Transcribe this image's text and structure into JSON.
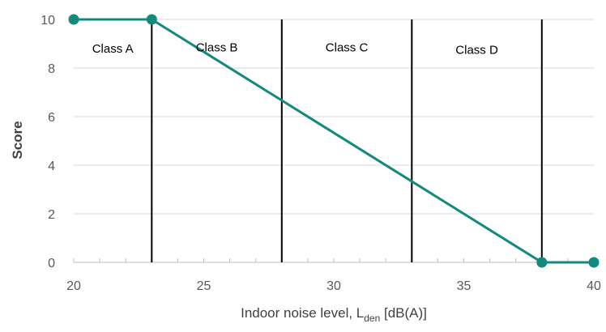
{
  "chart_data": {
    "type": "line",
    "title": "",
    "xlabel_main": "Indoor noise level, L",
    "xlabel_sub": "den",
    "xlabel_unit": " [dB(A)]",
    "ylabel": "Score",
    "xlim": [
      20,
      40
    ],
    "ylim": [
      0,
      10
    ],
    "xticks": [
      20,
      25,
      30,
      35,
      40
    ],
    "yticks": [
      0,
      2,
      4,
      6,
      8,
      10
    ],
    "grid": "horizontal",
    "legend": "none",
    "series": [
      {
        "color": "#138a7e",
        "points": [
          [
            20,
            10
          ],
          [
            23,
            10
          ],
          [
            38,
            0
          ],
          [
            40,
            0
          ]
        ]
      }
    ],
    "class_boundaries": [
      23,
      28,
      33,
      38
    ],
    "class_labels": [
      {
        "label": "Class A",
        "x": 21.5,
        "y": 8.8
      },
      {
        "label": "Class B",
        "x": 25.5,
        "y": 8.85
      },
      {
        "label": "Class C",
        "x": 30.5,
        "y": 8.85
      },
      {
        "label": "Class D",
        "x": 35.5,
        "y": 8.75
      }
    ]
  }
}
